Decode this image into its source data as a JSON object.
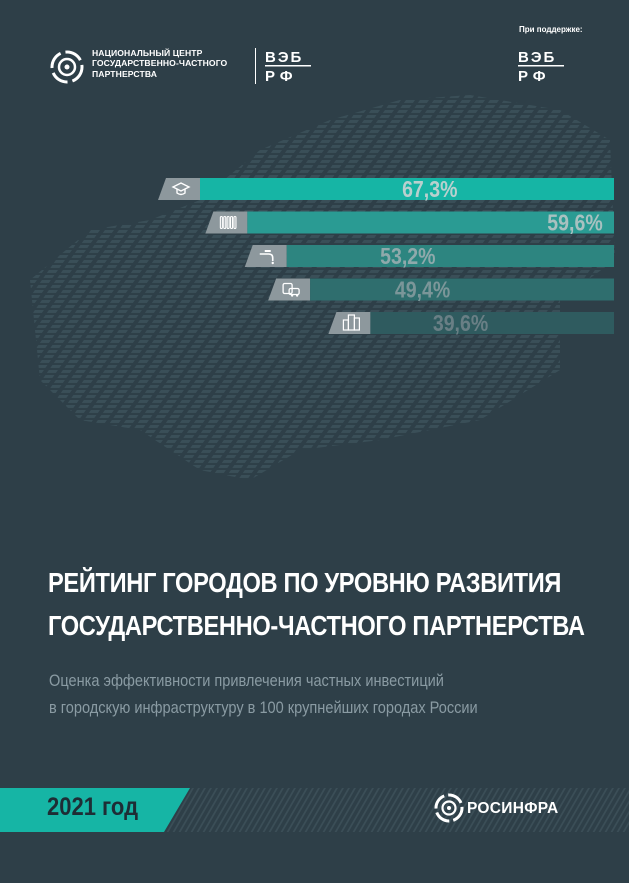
{
  "header": {
    "org_line1": "НАЦИОНАЛЬНЫЙ ЦЕНТР",
    "org_line2": "ГОСУДАРСТВЕННО-ЧАСТНОГО",
    "org_line3": "ПАРТНЕРСТВА",
    "partner_top": "ВЭБ",
    "partner_bottom": "РФ",
    "support_label": "При поддержке:",
    "support_top": "ВЭБ",
    "support_bottom": "РФ"
  },
  "chart_data": {
    "type": "bar",
    "categories": [
      "education-icon",
      "radiator-icon",
      "water-tap-icon",
      "transport-icon",
      "buildings-icon"
    ],
    "values": [
      67.3,
      59.6,
      53.2,
      49.4,
      39.6
    ],
    "labels": [
      "67,3%",
      "59,6%",
      "53,2%",
      "49,4%",
      "39,6%"
    ],
    "colors": [
      "#16b5a5",
      "#2a9b93",
      "#2d8580",
      "#2f6e6e",
      "#2f5b5f"
    ],
    "label_colors": [
      "#b9d0ce",
      "#a8c1c0",
      "#8fa9ab",
      "#7b9699",
      "#697f85"
    ]
  },
  "title": {
    "line1": "РЕЙТИНГ ГОРОДОВ ПО УРОВНЮ РАЗВИТИЯ",
    "line2": "ГОСУДАРСТВЕННО-ЧАСТНОГО ПАРТНЕРСТВА"
  },
  "subtitle": {
    "line1": "Оценка эффективности привлечения частных инвестиций",
    "line2": "в городскую инфраструктуру в 100 крупнейших городах России"
  },
  "footer": {
    "year": "2021 год",
    "brand": "РОСИНФРА"
  },
  "colors": {
    "background": "#2e3f48",
    "accent": "#16b5a5",
    "muted_text": "#8a9ba3"
  }
}
